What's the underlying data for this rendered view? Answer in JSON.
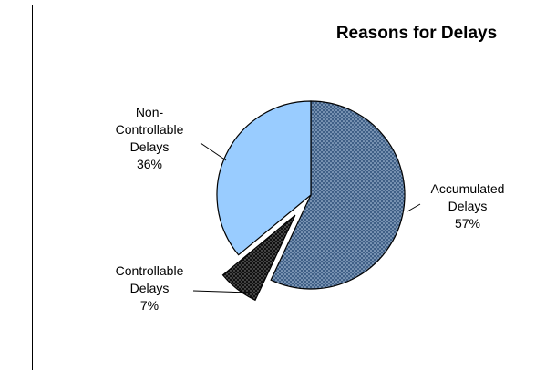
{
  "chart_data": {
    "type": "pie",
    "title": "Reasons for Delays",
    "slices": [
      {
        "name": "Accumulated Delays",
        "label_lines": [
          "Accumulated",
          "Delays",
          "57%"
        ],
        "value": 57,
        "fill": "#4a6d96",
        "pattern": "dots-on-blue",
        "exploded": false
      },
      {
        "name": "Controllable Delays",
        "label_lines": [
          "Controllable",
          "Delays",
          "7%"
        ],
        "value": 7,
        "fill": "#1a1a1a",
        "pattern": "dots-on-black",
        "exploded": true
      },
      {
        "name": "Non-Controllable Delays",
        "label_lines": [
          "Non-",
          "Controllable",
          "Delays",
          "36%"
        ],
        "value": 36,
        "fill": "#99ccff",
        "pattern": "solid",
        "exploded": false
      }
    ],
    "legend": "none",
    "data_labels": "outside-with-leader-lines"
  }
}
